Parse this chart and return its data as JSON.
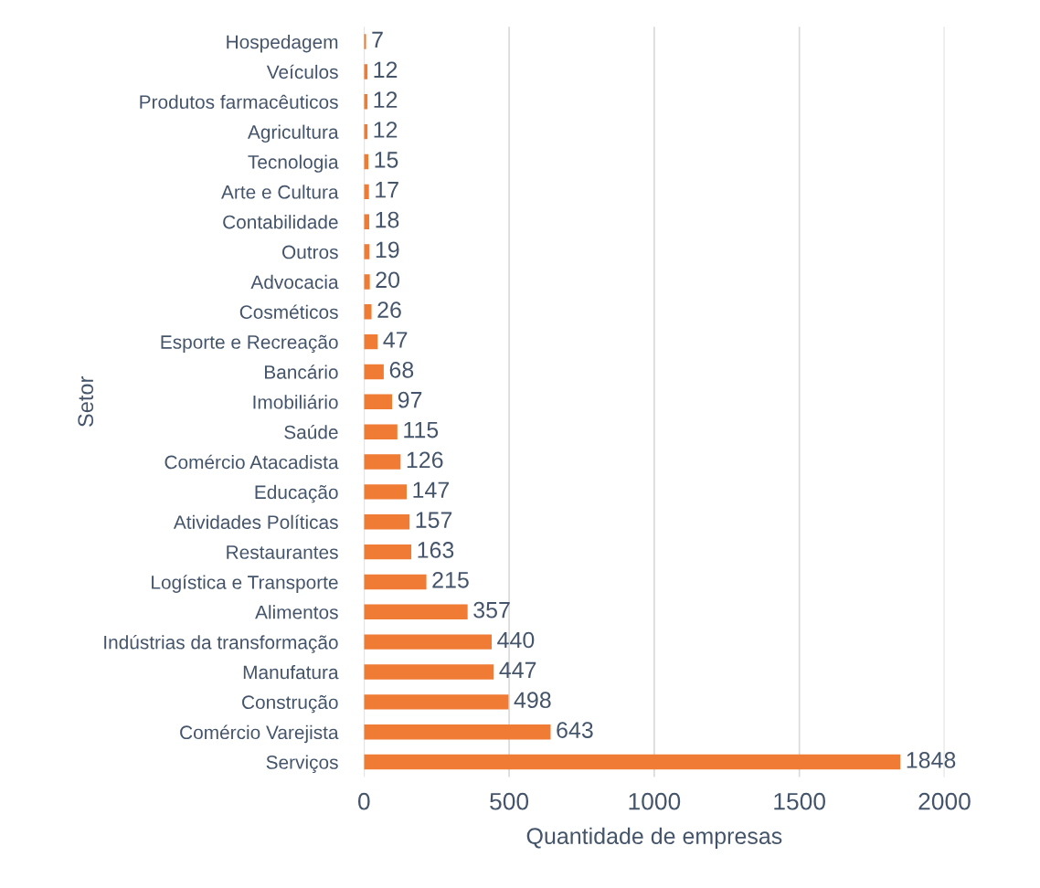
{
  "chart_data": {
    "type": "bar",
    "orientation": "horizontal",
    "xlabel": "Quantidade de empresas",
    "ylabel": "Setor",
    "categories": [
      "Hospedagem",
      "Veículos",
      "Produtos farmacêuticos",
      "Agricultura",
      "Tecnologia",
      "Arte e Cultura",
      "Contabilidade",
      "Outros",
      "Advocacia",
      "Cosméticos",
      "Esporte e Recreação",
      "Bancário",
      "Imobiliário",
      "Saúde",
      "Comércio Atacadista",
      "Educação",
      "Atividades Políticas",
      "Restaurantes",
      "Logística e Transporte",
      "Alimentos",
      "Indústrias da transformação",
      "Manufatura",
      "Construção",
      "Comércio Varejista",
      "Serviços"
    ],
    "values": [
      7,
      12,
      12,
      12,
      15,
      17,
      18,
      19,
      20,
      26,
      47,
      68,
      97,
      115,
      126,
      147,
      157,
      163,
      215,
      357,
      440,
      447,
      498,
      643,
      1848
    ],
    "color": "#ef7b34",
    "xlim": [
      0,
      2000
    ],
    "xticks": [
      0,
      500,
      1000,
      1500,
      2000
    ],
    "grid": "x",
    "data_labels": true
  }
}
